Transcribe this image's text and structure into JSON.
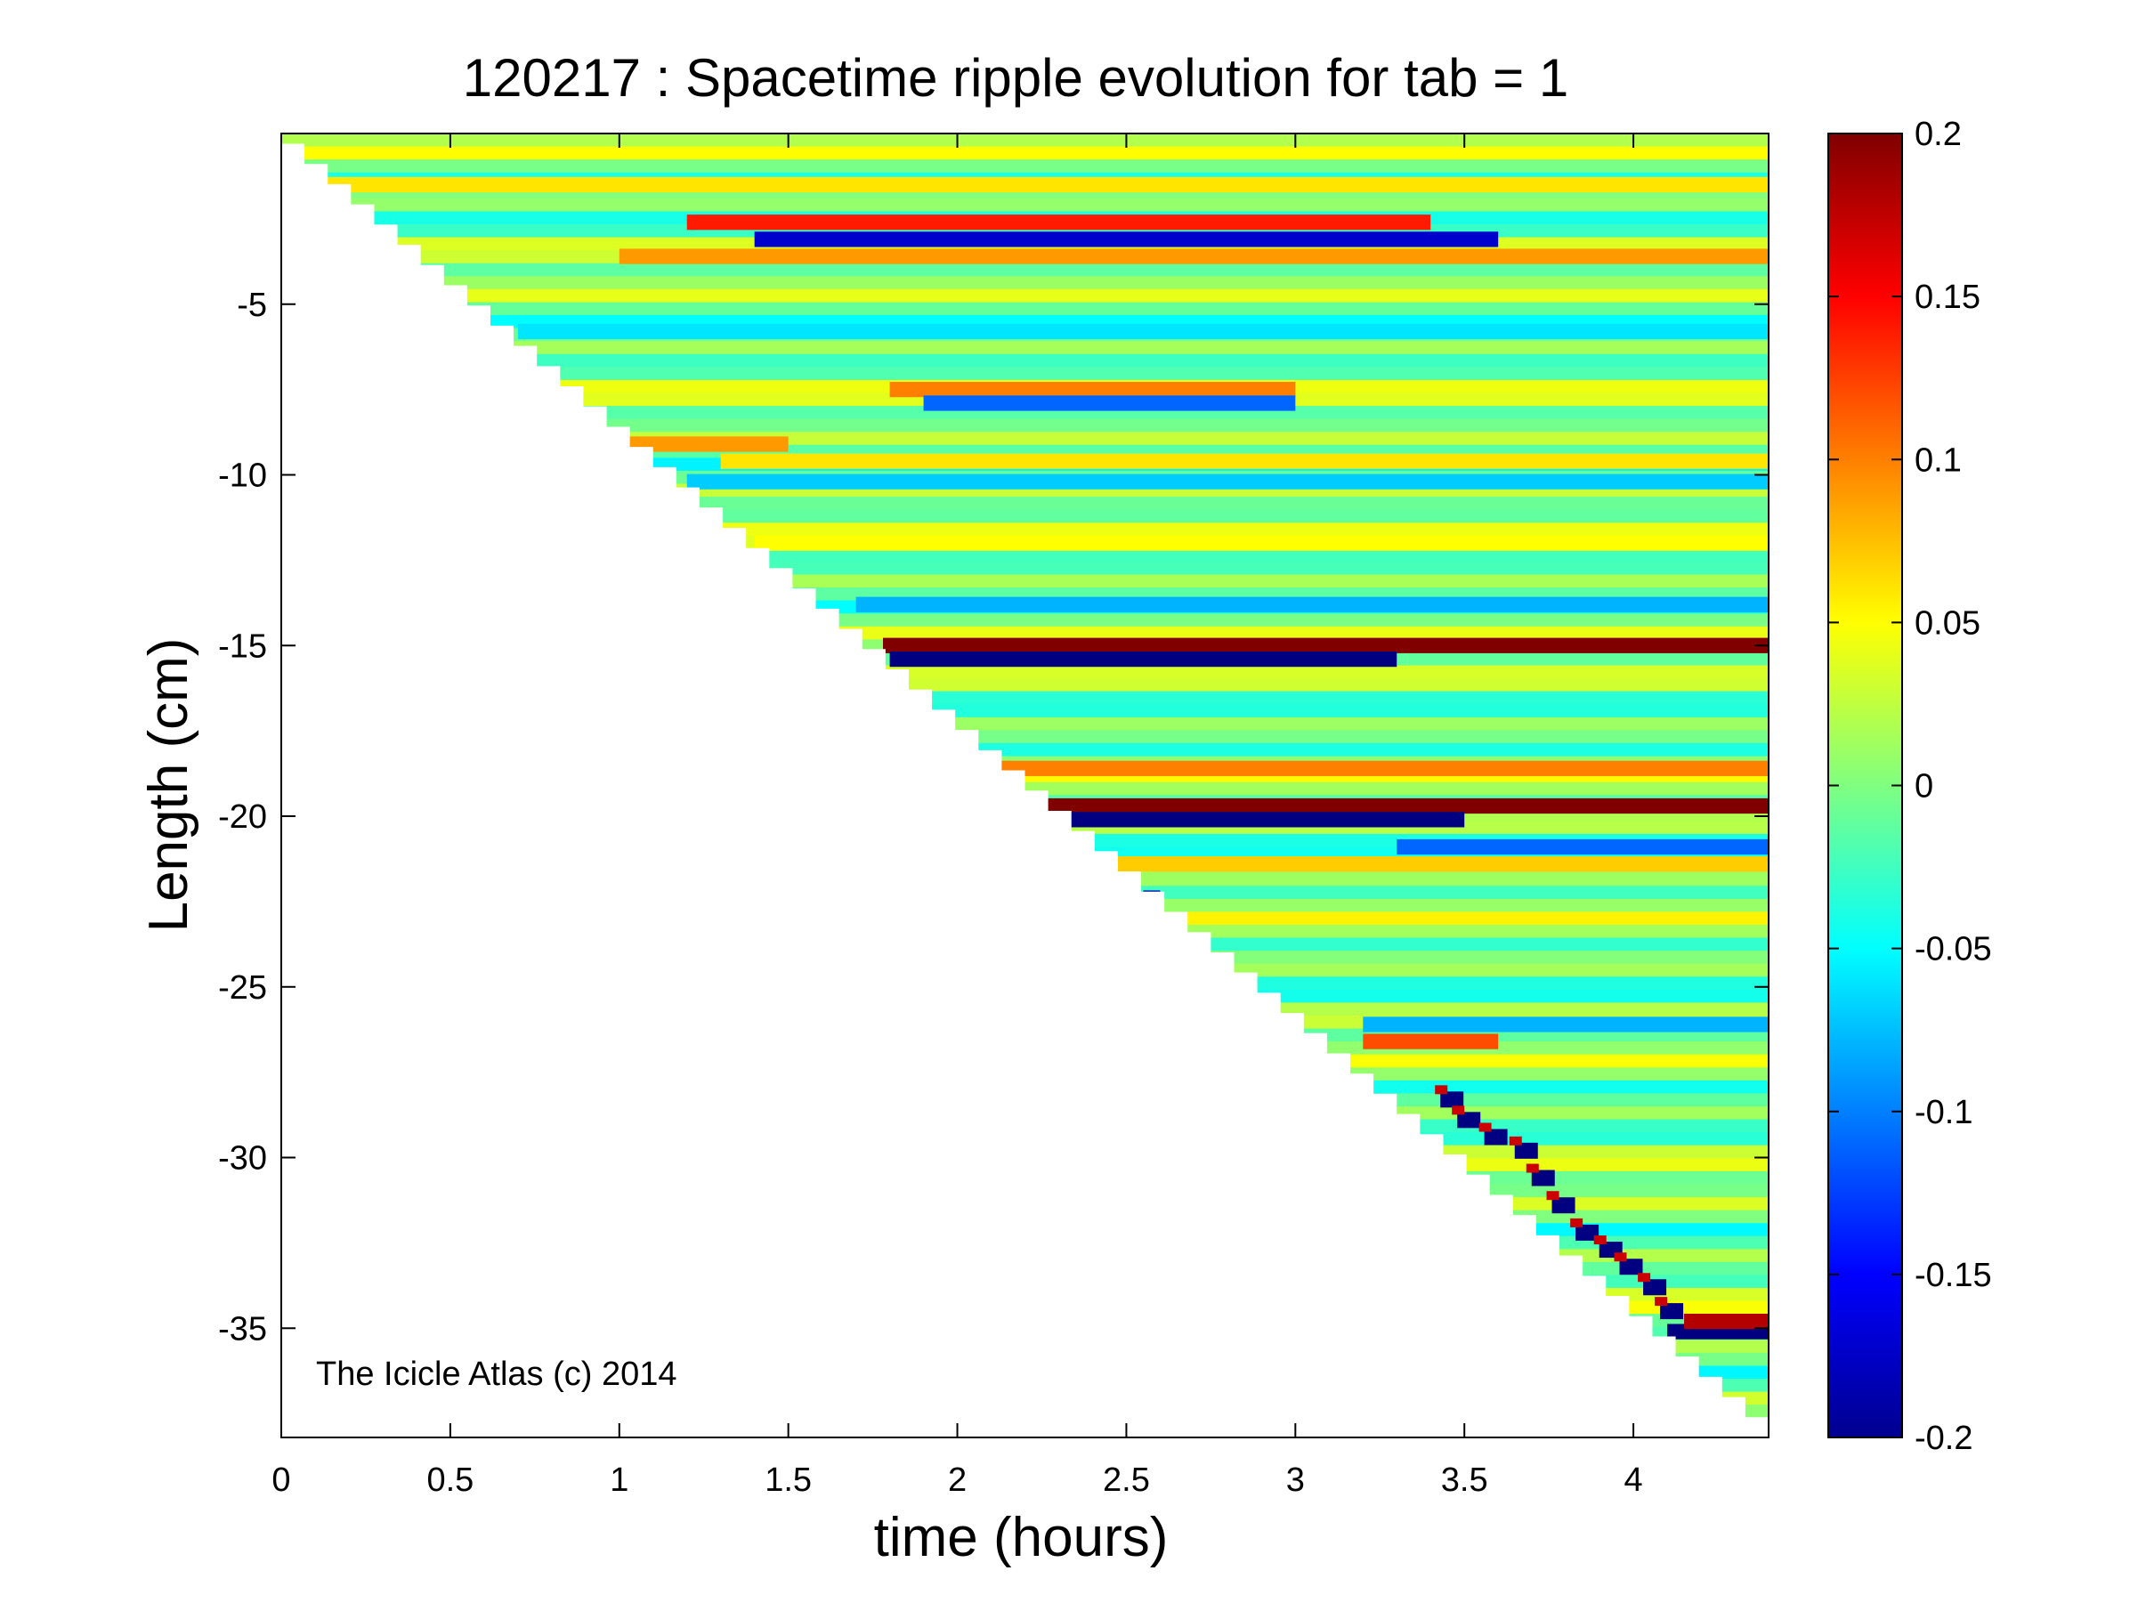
{
  "chart_data": {
    "type": "heatmap",
    "title": "120217 : Spacetime ripple evolution for tab = 1",
    "xlabel": "time (hours)",
    "ylabel": "Length (cm)",
    "xlim": [
      0,
      4.4
    ],
    "ylim": [
      -38.2,
      0
    ],
    "x_ticks": [
      0,
      0.5,
      1,
      1.5,
      2,
      2.5,
      3,
      3.5,
      4
    ],
    "x_tick_labels": [
      "0",
      "0.5",
      "1",
      "1.5",
      "2",
      "2.5",
      "3",
      "3.5",
      "4"
    ],
    "y_ticks": [
      -5,
      -10,
      -15,
      -20,
      -25,
      -30,
      -35
    ],
    "y_tick_labels": [
      "-5",
      "-10",
      "-15",
      "-20",
      "-25",
      "-30",
      "-35"
    ],
    "grid": false,
    "colormap": "jet",
    "colorbar": {
      "clim": [
        -0.2,
        0.2
      ],
      "ticks": [
        0.2,
        0.15,
        0.1,
        0.05,
        0,
        -0.05,
        -0.1,
        -0.15,
        -0.2
      ],
      "tick_labels": [
        "0.2",
        "0.15",
        "0.1",
        "0.05",
        "0",
        "-0.05",
        "-0.1",
        "-0.15",
        "-0.2"
      ]
    },
    "growth_front": {
      "description": "icicle tip position vs time; data exists only above this front",
      "time_hours": [
        0,
        4.4
      ],
      "length_cm": [
        -0.3,
        -38.2
      ]
    },
    "ripple_bands": [
      {
        "length_cm": -1.5,
        "value": 0.06,
        "t_start": 0.1,
        "t_end": 4.4
      },
      {
        "length_cm": -2.6,
        "value": 0.14,
        "t_start": 1.2,
        "t_end": 3.4
      },
      {
        "length_cm": -3.1,
        "value": -0.17,
        "t_start": 1.4,
        "t_end": 3.6
      },
      {
        "length_cm": -3.6,
        "value": 0.09,
        "t_start": 1.0,
        "t_end": 4.4
      },
      {
        "length_cm": -5.8,
        "value": -0.06,
        "t_start": 0.7,
        "t_end": 4.4
      },
      {
        "length_cm": -7.5,
        "value": 0.1,
        "t_start": 1.8,
        "t_end": 3.0
      },
      {
        "length_cm": -7.9,
        "value": -0.11,
        "t_start": 1.9,
        "t_end": 3.0
      },
      {
        "length_cm": -9.1,
        "value": 0.09,
        "t_start": 1.0,
        "t_end": 1.5
      },
      {
        "length_cm": -9.6,
        "value": 0.06,
        "t_start": 1.3,
        "t_end": 4.4
      },
      {
        "length_cm": -10.2,
        "value": -0.07,
        "t_start": 1.2,
        "t_end": 4.4
      },
      {
        "length_cm": -12.0,
        "value": 0.05,
        "t_start": 1.4,
        "t_end": 4.4
      },
      {
        "length_cm": -13.8,
        "value": -0.08,
        "t_start": 1.7,
        "t_end": 4.4
      },
      {
        "length_cm": -15.0,
        "value": 0.2,
        "t_start": 1.78,
        "t_end": 4.4
      },
      {
        "length_cm": -15.4,
        "value": -0.2,
        "t_start": 1.8,
        "t_end": 3.3
      },
      {
        "length_cm": -18.6,
        "value": 0.1,
        "t_start": 2.05,
        "t_end": 4.4
      },
      {
        "length_cm": -19.7,
        "value": 0.2,
        "t_start": 2.2,
        "t_end": 4.4
      },
      {
        "length_cm": -20.1,
        "value": -0.2,
        "t_start": 2.25,
        "t_end": 3.5
      },
      {
        "length_cm": -20.9,
        "value": -0.11,
        "t_start": 3.3,
        "t_end": 4.4
      },
      {
        "length_cm": -21.4,
        "value": 0.07,
        "t_start": 2.4,
        "t_end": 4.4
      },
      {
        "length_cm": -22.4,
        "value": -0.18,
        "t_start": 2.55,
        "t_end": 2.6
      },
      {
        "length_cm": -26.1,
        "value": -0.08,
        "t_start": 3.2,
        "t_end": 4.4
      },
      {
        "length_cm": -26.6,
        "value": 0.12,
        "t_start": 3.2,
        "t_end": 3.6
      },
      {
        "length_cm": -35.1,
        "value": -0.2,
        "t_start": 4.1,
        "t_end": 4.4
      },
      {
        "length_cm": -34.8,
        "value": 0.18,
        "t_start": 4.15,
        "t_end": 4.4
      }
    ],
    "tip_ripple_trail": [
      {
        "time_hours": 3.45,
        "length_cm": -28.3
      },
      {
        "time_hours": 3.5,
        "length_cm": -28.9
      },
      {
        "time_hours": 3.58,
        "length_cm": -29.4
      },
      {
        "time_hours": 3.67,
        "length_cm": -29.8
      },
      {
        "time_hours": 3.72,
        "length_cm": -30.6
      },
      {
        "time_hours": 3.78,
        "length_cm": -31.4
      },
      {
        "time_hours": 3.85,
        "length_cm": -32.2
      },
      {
        "time_hours": 3.92,
        "length_cm": -32.7
      },
      {
        "time_hours": 3.98,
        "length_cm": -33.2
      },
      {
        "time_hours": 4.05,
        "length_cm": -33.8
      },
      {
        "time_hours": 4.1,
        "length_cm": -34.5
      }
    ]
  },
  "watermark": "The Icicle Atlas (c) 2014",
  "colors": {
    "background": "#ffffff",
    "axis": "#000000",
    "nodata": "#ffffff"
  }
}
